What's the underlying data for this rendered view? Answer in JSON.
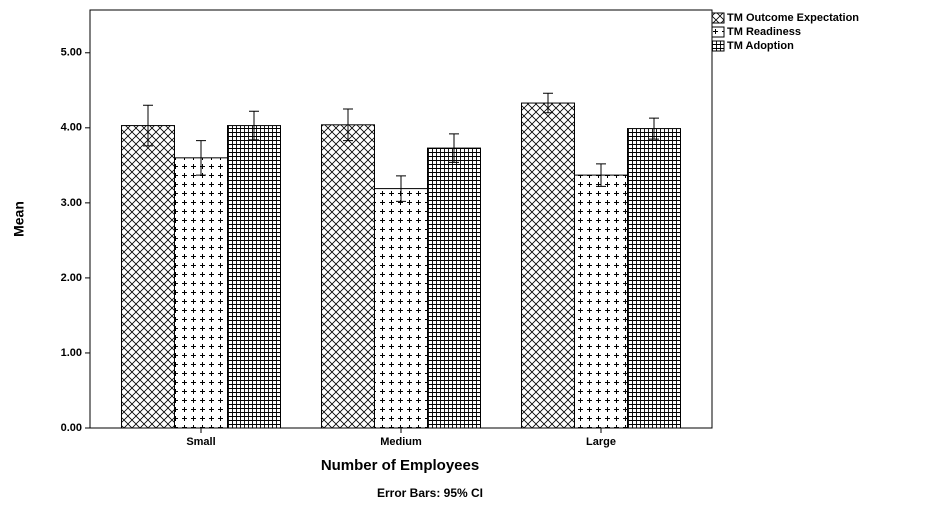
{
  "chart_data": {
    "type": "bar",
    "x_label": "Number of Employees",
    "y_label": "Mean",
    "note": "Error Bars: 95% CI",
    "categories": [
      "Small",
      "Medium",
      "Large"
    ],
    "series": [
      {
        "name": "TM Outcome Expectation",
        "color": "#000000",
        "pattern": "crosshatch",
        "values": [
          4.03,
          4.04,
          4.33
        ],
        "errors": [
          0.27,
          0.21,
          0.13
        ]
      },
      {
        "name": "TM Readiness",
        "color": "#000000",
        "pattern": "plus",
        "values": [
          3.6,
          3.19,
          3.37
        ],
        "errors": [
          0.23,
          0.17,
          0.15
        ]
      },
      {
        "name": "TM Adoption",
        "color": "#000000",
        "pattern": "grid",
        "values": [
          4.03,
          3.73,
          3.99
        ],
        "errors": [
          0.19,
          0.19,
          0.14
        ]
      }
    ],
    "ylim": [
      0,
      5.57
    ],
    "yticks": [
      {
        "value": 0,
        "label": "0.00"
      },
      {
        "value": 1,
        "label": "1.00"
      },
      {
        "value": 2,
        "label": "2.00"
      },
      {
        "value": 3,
        "label": "3.00"
      },
      {
        "value": 4,
        "label": "4.00"
      },
      {
        "value": 5,
        "label": "5.00"
      }
    ],
    "legend": "right"
  }
}
